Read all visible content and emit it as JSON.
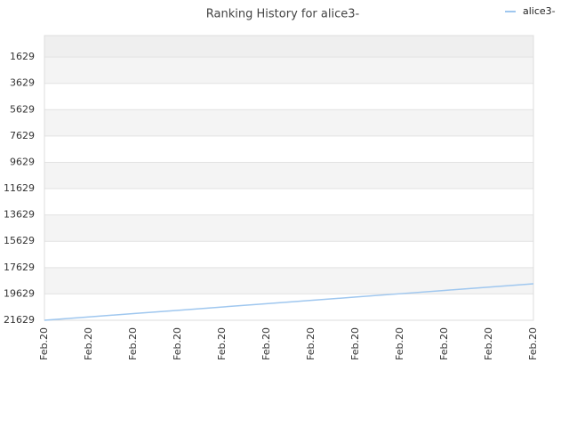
{
  "chart_data": {
    "type": "line",
    "title": "Ranking History for alice3-",
    "categories": [
      "Feb.20",
      "Feb.20",
      "Feb.20",
      "Feb.20",
      "Feb.20",
      "Feb.20",
      "Feb.20",
      "Feb.20",
      "Feb.20",
      "Feb.20",
      "Feb.20",
      "Feb.20"
    ],
    "series": [
      {
        "name": "alice3-",
        "color": "#9fc7ef",
        "values": [
          21629,
          21377,
          21125,
          20874,
          20622,
          20370,
          20118,
          19866,
          19614,
          19363,
          19111,
          18859
        ]
      }
    ],
    "ylim": [
      21629,
      0
    ],
    "yticks": [
      1629,
      3629,
      5629,
      7629,
      9629,
      11629,
      13629,
      15629,
      17629,
      19629,
      21629
    ],
    "grid": true,
    "legend": "top-right"
  }
}
